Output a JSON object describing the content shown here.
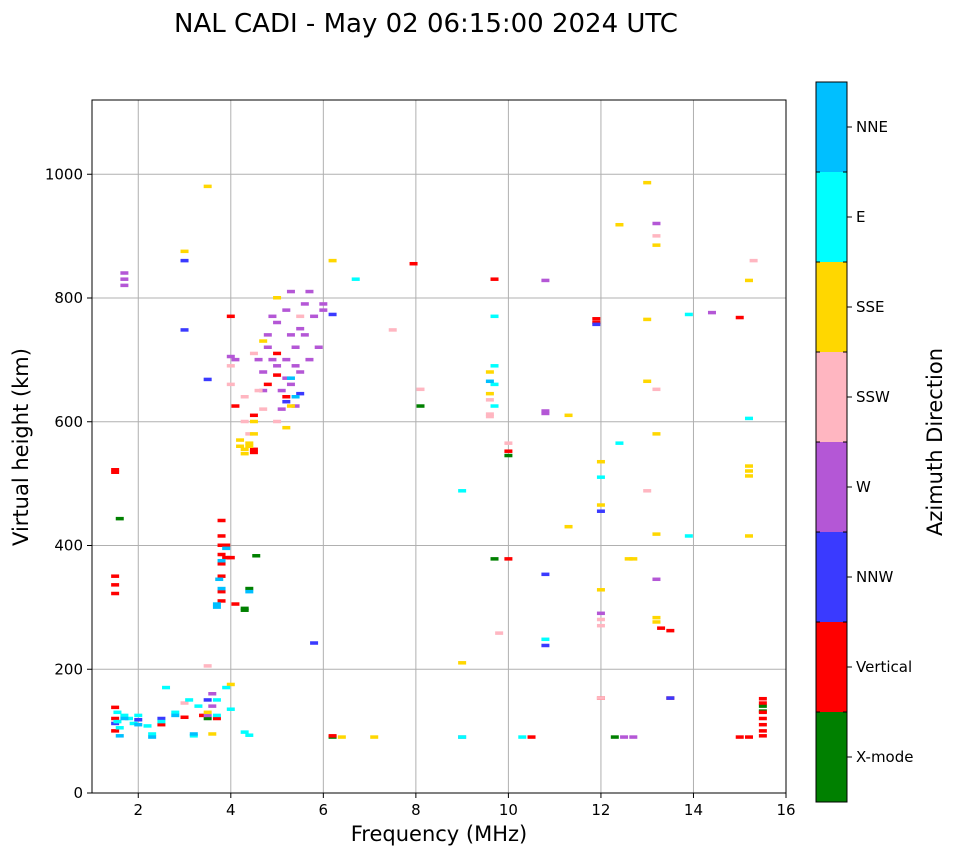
{
  "chart_data": {
    "type": "scatter",
    "title": "NAL CADI - May 02 06:15:00 2024 UTC",
    "xlabel": "Frequency (MHz)",
    "ylabel": "Virtual height (km)",
    "xlim": [
      1,
      16
    ],
    "ylim": [
      0,
      1120
    ],
    "xticks": [
      2,
      4,
      6,
      8,
      10,
      12,
      14,
      16
    ],
    "yticks": [
      0,
      200,
      400,
      600,
      800,
      1000
    ],
    "grid": true,
    "colorbar": {
      "label": "Azimuth Direction",
      "placement": "right",
      "categories": [
        {
          "name": "X-mode",
          "color": "#008000"
        },
        {
          "name": "Vertical",
          "color": "#ff0000"
        },
        {
          "name": "NNW",
          "color": "#3a3aff"
        },
        {
          "name": "W",
          "color": "#b457d6"
        },
        {
          "name": "SSW",
          "color": "#ffb6c1"
        },
        {
          "name": "SSE",
          "color": "#ffd700"
        },
        {
          "name": "E",
          "color": "#00ffff"
        },
        {
          "name": "NNE",
          "color": "#00bfff"
        }
      ]
    },
    "series": [
      {
        "category": 0,
        "points": [
          [
            1.6,
            443
          ],
          [
            3.5,
            120
          ],
          [
            4.3,
            298
          ],
          [
            4.3,
            295
          ],
          [
            4.4,
            330
          ],
          [
            4.55,
            383
          ],
          [
            6.2,
            90
          ],
          [
            8.1,
            625
          ],
          [
            9.7,
            378
          ],
          [
            10.0,
            545
          ],
          [
            12.3,
            90
          ],
          [
            15.5,
            140
          ],
          [
            15.5,
            132
          ]
        ]
      },
      {
        "category": 1,
        "points": [
          [
            1.5,
            522
          ],
          [
            1.5,
            518
          ],
          [
            1.5,
            350
          ],
          [
            1.5,
            336
          ],
          [
            1.5,
            322
          ],
          [
            1.5,
            138
          ],
          [
            1.5,
            120
          ],
          [
            1.5,
            100
          ],
          [
            2.5,
            110
          ],
          [
            3.0,
            122
          ],
          [
            3.4,
            125
          ],
          [
            3.7,
            120
          ],
          [
            3.8,
            440
          ],
          [
            3.8,
            415
          ],
          [
            3.8,
            400
          ],
          [
            3.8,
            385
          ],
          [
            3.8,
            370
          ],
          [
            3.8,
            350
          ],
          [
            3.8,
            325
          ],
          [
            3.8,
            310
          ],
          [
            3.9,
            400
          ],
          [
            3.9,
            380
          ],
          [
            4.0,
            380
          ],
          [
            4.0,
            770
          ],
          [
            4.1,
            625
          ],
          [
            4.1,
            305
          ],
          [
            4.5,
            555
          ],
          [
            4.5,
            550
          ],
          [
            4.5,
            610
          ],
          [
            4.8,
            660
          ],
          [
            5.0,
            675
          ],
          [
            5.2,
            640
          ],
          [
            5.0,
            710
          ],
          [
            6.2,
            92
          ],
          [
            7.95,
            855
          ],
          [
            9.7,
            830
          ],
          [
            10.0,
            552
          ],
          [
            10.0,
            378
          ],
          [
            10.5,
            90
          ],
          [
            11.9,
            766
          ],
          [
            11.9,
            760
          ],
          [
            12.0,
            153
          ],
          [
            13.3,
            266
          ],
          [
            13.5,
            262
          ],
          [
            13.5,
            153
          ],
          [
            15.0,
            768
          ],
          [
            15.0,
            90
          ],
          [
            15.2,
            90
          ],
          [
            15.5,
            152
          ],
          [
            15.5,
            145
          ],
          [
            15.5,
            130
          ],
          [
            15.5,
            120
          ],
          [
            15.5,
            110
          ],
          [
            15.5,
            100
          ],
          [
            15.5,
            92
          ]
        ]
      },
      {
        "category": 2,
        "points": [
          [
            1.5,
            112
          ],
          [
            2.0,
            118
          ],
          [
            2.5,
            120
          ],
          [
            3.5,
            668
          ],
          [
            3.0,
            860
          ],
          [
            3.0,
            748
          ],
          [
            3.5,
            150
          ],
          [
            5.2,
            632
          ],
          [
            5.5,
            645
          ],
          [
            5.8,
            242
          ],
          [
            6.2,
            773
          ],
          [
            10.8,
            353
          ],
          [
            10.8,
            238
          ],
          [
            11.9,
            757
          ],
          [
            12.0,
            455
          ],
          [
            13.5,
            153
          ]
        ]
      },
      {
        "category": 3,
        "points": [
          [
            1.7,
            840
          ],
          [
            1.7,
            830
          ],
          [
            1.7,
            820
          ],
          [
            3.6,
            160
          ],
          [
            3.6,
            140
          ],
          [
            3.5,
            125
          ],
          [
            4.0,
            705
          ],
          [
            4.1,
            700
          ],
          [
            4.6,
            700
          ],
          [
            4.7,
            680
          ],
          [
            4.7,
            650
          ],
          [
            4.8,
            720
          ],
          [
            4.8,
            740
          ],
          [
            4.9,
            770
          ],
          [
            4.9,
            700
          ],
          [
            5.0,
            760
          ],
          [
            5.0,
            690
          ],
          [
            5.1,
            650
          ],
          [
            5.1,
            620
          ],
          [
            5.2,
            700
          ],
          [
            5.2,
            670
          ],
          [
            5.2,
            780
          ],
          [
            5.3,
            810
          ],
          [
            5.3,
            740
          ],
          [
            5.3,
            660
          ],
          [
            5.4,
            690
          ],
          [
            5.4,
            720
          ],
          [
            5.4,
            625
          ],
          [
            5.5,
            750
          ],
          [
            5.5,
            680
          ],
          [
            5.6,
            790
          ],
          [
            5.6,
            740
          ],
          [
            5.7,
            810
          ],
          [
            5.7,
            700
          ],
          [
            5.8,
            770
          ],
          [
            5.9,
            720
          ],
          [
            6.0,
            790
          ],
          [
            6.0,
            780
          ],
          [
            9.0,
            90
          ],
          [
            10.8,
            828
          ],
          [
            10.8,
            617
          ],
          [
            10.8,
            613
          ],
          [
            12.0,
            290
          ],
          [
            12.5,
            90
          ],
          [
            12.7,
            90
          ],
          [
            13.2,
            920
          ],
          [
            13.2,
            345
          ],
          [
            14.4,
            776
          ]
        ]
      },
      {
        "category": 4,
        "points": [
          [
            3.0,
            145
          ],
          [
            3.5,
            205
          ],
          [
            4.0,
            690
          ],
          [
            4.0,
            660
          ],
          [
            4.3,
            640
          ],
          [
            4.3,
            600
          ],
          [
            4.4,
            580
          ],
          [
            4.5,
            710
          ],
          [
            4.6,
            650
          ],
          [
            4.7,
            620
          ],
          [
            5.0,
            600
          ],
          [
            5.5,
            770
          ],
          [
            7.5,
            748
          ],
          [
            8.1,
            652
          ],
          [
            9.6,
            635
          ],
          [
            9.6,
            612
          ],
          [
            9.6,
            608
          ],
          [
            9.8,
            258
          ],
          [
            10.0,
            565
          ],
          [
            12.0,
            280
          ],
          [
            12.0,
            270
          ],
          [
            13.0,
            488
          ],
          [
            13.2,
            900
          ],
          [
            13.2,
            652
          ],
          [
            15.3,
            860
          ],
          [
            12.0,
            153
          ]
        ]
      },
      {
        "category": 5,
        "points": [
          [
            3.0,
            875
          ],
          [
            3.5,
            980
          ],
          [
            3.5,
            130
          ],
          [
            3.6,
            95
          ],
          [
            4.0,
            175
          ],
          [
            4.2,
            570
          ],
          [
            4.2,
            560
          ],
          [
            4.3,
            555
          ],
          [
            4.3,
            548
          ],
          [
            4.4,
            565
          ],
          [
            4.4,
            560
          ],
          [
            4.5,
            580
          ],
          [
            4.5,
            600
          ],
          [
            4.7,
            730
          ],
          [
            5.0,
            800
          ],
          [
            5.2,
            590
          ],
          [
            5.3,
            625
          ],
          [
            6.2,
            860
          ],
          [
            6.4,
            90
          ],
          [
            7.1,
            90
          ],
          [
            9.0,
            210
          ],
          [
            9.6,
            680
          ],
          [
            9.6,
            645
          ],
          [
            11.3,
            430
          ],
          [
            11.3,
            610
          ],
          [
            12.0,
            535
          ],
          [
            12.0,
            465
          ],
          [
            12.0,
            328
          ],
          [
            12.4,
            918
          ],
          [
            12.6,
            378
          ],
          [
            12.7,
            378
          ],
          [
            13.0,
            986
          ],
          [
            13.0,
            765
          ],
          [
            13.0,
            665
          ],
          [
            13.2,
            885
          ],
          [
            13.2,
            580
          ],
          [
            13.2,
            418
          ],
          [
            13.2,
            283
          ],
          [
            13.2,
            276
          ],
          [
            15.2,
            828
          ],
          [
            15.2,
            528
          ],
          [
            15.2,
            520
          ],
          [
            15.2,
            512
          ],
          [
            15.2,
            415
          ]
        ]
      },
      {
        "category": 6,
        "points": [
          [
            1.55,
            130
          ],
          [
            1.55,
            115
          ],
          [
            1.6,
            105
          ],
          [
            1.7,
            125
          ],
          [
            1.8,
            120
          ],
          [
            1.9,
            112
          ],
          [
            2.0,
            125
          ],
          [
            2.2,
            108
          ],
          [
            2.3,
            95
          ],
          [
            2.5,
            115
          ],
          [
            2.6,
            170
          ],
          [
            2.8,
            130
          ],
          [
            3.1,
            150
          ],
          [
            3.2,
            92
          ],
          [
            3.3,
            140
          ],
          [
            3.7,
            125
          ],
          [
            3.7,
            150
          ],
          [
            3.9,
            170
          ],
          [
            4.0,
            135
          ],
          [
            4.3,
            98
          ],
          [
            4.4,
            93
          ],
          [
            6.7,
            830
          ],
          [
            9.0,
            488
          ],
          [
            9.0,
            90
          ],
          [
            9.7,
            690
          ],
          [
            9.7,
            660
          ],
          [
            9.7,
            625
          ],
          [
            9.7,
            770
          ],
          [
            10.3,
            90
          ],
          [
            10.8,
            248
          ],
          [
            12.0,
            510
          ],
          [
            12.4,
            565
          ],
          [
            13.9,
            773
          ],
          [
            13.9,
            415
          ],
          [
            15.2,
            605
          ]
        ]
      },
      {
        "category": 7,
        "points": [
          [
            1.6,
            92
          ],
          [
            1.7,
            120
          ],
          [
            2.0,
            110
          ],
          [
            2.3,
            90
          ],
          [
            2.8,
            125
          ],
          [
            3.2,
            95
          ],
          [
            3.7,
            305
          ],
          [
            3.7,
            300
          ],
          [
            3.75,
            345
          ],
          [
            3.8,
            375
          ],
          [
            3.8,
            330
          ],
          [
            3.9,
            395
          ],
          [
            4.4,
            325
          ],
          [
            5.3,
            670
          ],
          [
            5.4,
            640
          ],
          [
            9.6,
            665
          ]
        ]
      }
    ]
  }
}
